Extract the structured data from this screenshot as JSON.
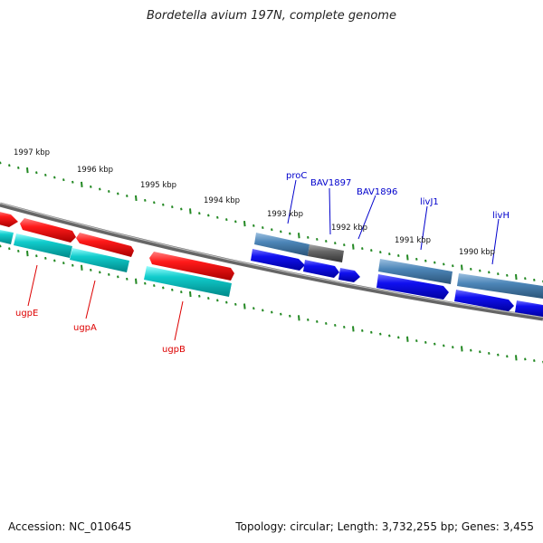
{
  "title": "Bordetella avium 197N, complete genome",
  "footer": {
    "accession": "Accession: NC_010645",
    "summary": "Topology: circular; Length: 3,732,255 bp; Genes: 3,455"
  },
  "ticks": [
    "1997 kbp",
    "1996 kbp",
    "1995 kbp",
    "1994 kbp",
    "1993 kbp",
    "1992 kbp",
    "1991 kbp",
    "1990 kbp"
  ],
  "gene_labels": {
    "red": [
      "ugpE",
      "ugpA",
      "ugpB"
    ],
    "blue": [
      "proC",
      "BAV1897",
      "BAV1896",
      "livJ1",
      "livH"
    ]
  },
  "colors": {
    "forward_feature": "#ee1111",
    "forward_rna": "#22cccc",
    "reverse_cds": "#1111ee",
    "reverse_gene": "#4d86b8",
    "gray_gene": "#666666",
    "backbone": "#777777",
    "tick": "#228822",
    "label_red": "#dd0000",
    "label_blue": "#0000cc"
  }
}
